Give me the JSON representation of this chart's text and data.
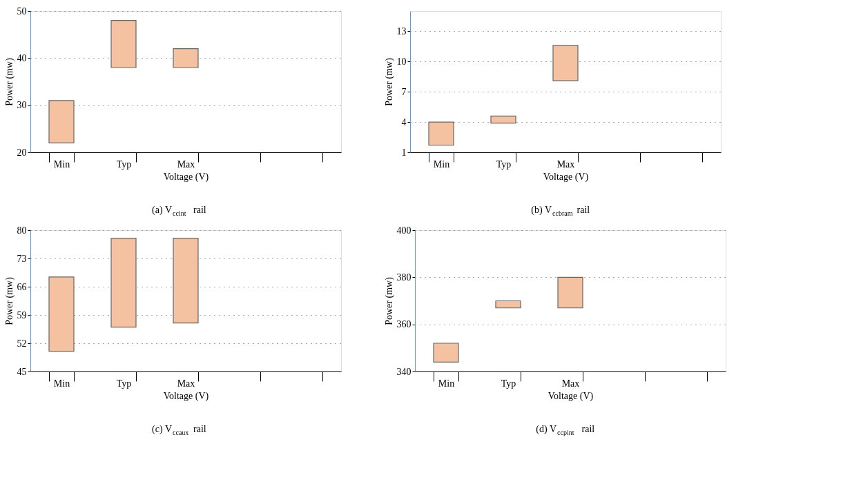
{
  "chart_data": [
    {
      "type": "bar",
      "categories": [
        "Min",
        "Typ",
        "Max",
        null,
        null
      ],
      "base": [
        22,
        38,
        38,
        null,
        null
      ],
      "values": [
        9,
        10,
        4,
        null,
        null
      ],
      "color": "#f4c2a0",
      "ylim": [
        20,
        50
      ],
      "yticks": [
        20,
        30,
        40,
        50
      ],
      "ylabel": "Power (mw)",
      "xlabel": "Voltage (V)",
      "grid": "y",
      "annotations": [
        "(a) V$_{ccint}$ rail"
      ]
    },
    {
      "type": "bar",
      "categories": [
        "Min",
        "Typ",
        "Max",
        null,
        null
      ],
      "base": [
        1.7,
        3.9,
        8.1,
        null,
        null
      ],
      "values": [
        2.3,
        0.7,
        3.5,
        null,
        null
      ],
      "color": "#f4c2a0",
      "ylim": [
        1,
        15
      ],
      "yticks": [
        1,
        4,
        7,
        10,
        13
      ],
      "ylabel": "Power (mw)",
      "xlabel": "Voltage (V)",
      "grid": "y",
      "annotations": [
        "(b) V$_{ccbram}$ rail"
      ]
    },
    {
      "type": "bar",
      "categories": [
        "Min",
        "Typ",
        "Max",
        null,
        null
      ],
      "base": [
        50,
        56,
        57,
        null,
        null
      ],
      "values": [
        18.4,
        22,
        21,
        null,
        null
      ],
      "color": "#f4c2a0",
      "ylim": [
        45,
        80
      ],
      "yticks": [
        45,
        52,
        59,
        66,
        73,
        80
      ],
      "ylabel": "Power (mw)",
      "xlabel": "Voltage (V)",
      "grid": "y",
      "annotations": [
        "(c) V$_{ccaux}$ rail"
      ]
    },
    {
      "type": "bar",
      "categories": [
        "Min",
        "Typ",
        "Max",
        null,
        null
      ],
      "base": [
        344,
        367,
        367,
        null,
        null
      ],
      "values": [
        8,
        3,
        13,
        null,
        null
      ],
      "color": "#f4c2a0",
      "ylim": [
        340,
        400
      ],
      "yticks": [
        340,
        360,
        380,
        400
      ],
      "ylabel": "Power (mw)",
      "xlabel": "Voltage (V)",
      "grid": "y",
      "annotations": [
        "(d) V$_{ccpint}$ rail"
      ]
    }
  ]
}
